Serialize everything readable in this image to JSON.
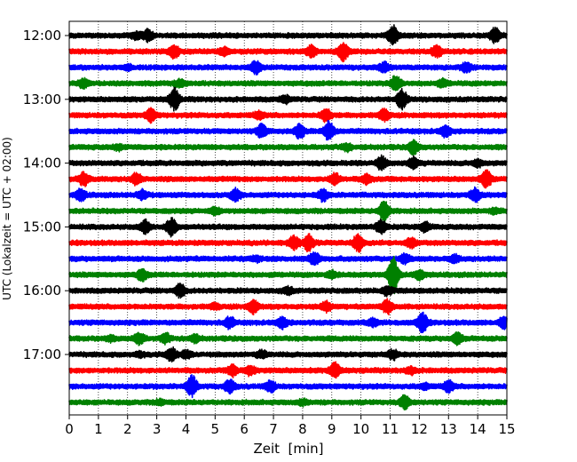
{
  "chart_data": {
    "type": "line",
    "title": "",
    "xlabel": "Zeit  [min]",
    "ylabel": "UTC (Lokalzeit = UTC + 02:00)",
    "xlim": [
      0,
      15
    ],
    "x_ticks": [
      "0",
      "1",
      "2",
      "3",
      "4",
      "5",
      "6",
      "7",
      "8",
      "9",
      "10",
      "11",
      "12",
      "13",
      "14",
      "15"
    ],
    "y_ticks": [
      {
        "label": "12:00",
        "row": 0
      },
      {
        "label": "13:00",
        "row": 4
      },
      {
        "label": "14:00",
        "row": 8
      },
      {
        "label": "15:00",
        "row": 12
      },
      {
        "label": "16:00",
        "row": 16
      },
      {
        "label": "17:00",
        "row": 20
      }
    ],
    "grid": "vertical dotted",
    "trace_interval_min": 15,
    "colors": [
      "#000000",
      "#ff0000",
      "#0000ff",
      "#008000"
    ],
    "traces": [
      {
        "start": "12:00",
        "color": "#000000",
        "events": [
          [
            2.7,
            0.5
          ],
          [
            11.1,
            0.9
          ],
          [
            14.6,
            0.7
          ],
          [
            2.3,
            0.3
          ]
        ]
      },
      {
        "start": "12:15",
        "color": "#ff0000",
        "events": [
          [
            3.6,
            0.6
          ],
          [
            8.3,
            0.5
          ],
          [
            9.4,
            0.9
          ],
          [
            5.3,
            0.3
          ],
          [
            12.6,
            0.5
          ]
        ]
      },
      {
        "start": "12:30",
        "color": "#0000ff",
        "events": [
          [
            6.4,
            0.6
          ],
          [
            10.8,
            0.4
          ],
          [
            13.6,
            0.4
          ],
          [
            2.0,
            0.2
          ]
        ]
      },
      {
        "start": "12:45",
        "color": "#008000",
        "events": [
          [
            0.5,
            0.4
          ],
          [
            11.2,
            0.7
          ],
          [
            12.8,
            0.3
          ],
          [
            3.8,
            0.3
          ]
        ]
      },
      {
        "start": "13:00",
        "color": "#000000",
        "events": [
          [
            3.6,
            1.0
          ],
          [
            11.4,
            0.9
          ],
          [
            7.4,
            0.3
          ]
        ]
      },
      {
        "start": "13:15",
        "color": "#ff0000",
        "events": [
          [
            2.8,
            0.6
          ],
          [
            8.8,
            0.6
          ],
          [
            10.8,
            0.5
          ],
          [
            6.5,
            0.3
          ]
        ]
      },
      {
        "start": "13:30",
        "color": "#0000ff",
        "events": [
          [
            6.6,
            0.6
          ],
          [
            7.9,
            0.6
          ],
          [
            8.9,
            0.9
          ],
          [
            12.9,
            0.5
          ]
        ]
      },
      {
        "start": "13:45",
        "color": "#008000",
        "events": [
          [
            11.8,
            0.6
          ],
          [
            1.7,
            0.2
          ],
          [
            9.5,
            0.3
          ]
        ]
      },
      {
        "start": "14:00",
        "color": "#000000",
        "events": [
          [
            10.7,
            0.6
          ],
          [
            11.8,
            0.5
          ],
          [
            14.0,
            0.3
          ]
        ]
      },
      {
        "start": "14:15",
        "color": "#ff0000",
        "events": [
          [
            0.5,
            0.6
          ],
          [
            2.3,
            0.5
          ],
          [
            9.1,
            0.5
          ],
          [
            10.2,
            0.4
          ],
          [
            14.3,
            0.8
          ]
        ]
      },
      {
        "start": "14:30",
        "color": "#0000ff",
        "events": [
          [
            0.4,
            0.5
          ],
          [
            2.5,
            0.4
          ],
          [
            5.7,
            0.5
          ],
          [
            8.7,
            0.5
          ],
          [
            13.9,
            0.6
          ]
        ]
      },
      {
        "start": "14:45",
        "color": "#008000",
        "events": [
          [
            10.8,
            1.0
          ],
          [
            5.0,
            0.3
          ],
          [
            14.6,
            0.2
          ]
        ]
      },
      {
        "start": "15:00",
        "color": "#000000",
        "events": [
          [
            2.6,
            0.6
          ],
          [
            3.5,
            0.8
          ],
          [
            10.7,
            0.6
          ],
          [
            12.2,
            0.4
          ]
        ]
      },
      {
        "start": "15:15",
        "color": "#ff0000",
        "events": [
          [
            7.7,
            0.6
          ],
          [
            8.2,
            0.7
          ],
          [
            9.9,
            0.8
          ],
          [
            11.7,
            0.4
          ]
        ]
      },
      {
        "start": "15:30",
        "color": "#0000ff",
        "events": [
          [
            8.4,
            0.6
          ],
          [
            11.5,
            0.4
          ],
          [
            6.4,
            0.2
          ],
          [
            13.2,
            0.3
          ]
        ]
      },
      {
        "start": "15:45",
        "color": "#008000",
        "events": [
          [
            2.5,
            0.5
          ],
          [
            11.1,
            1.8
          ],
          [
            12.0,
            0.4
          ],
          [
            9.0,
            0.3
          ]
        ]
      },
      {
        "start": "16:00",
        "color": "#000000",
        "events": [
          [
            3.8,
            0.6
          ],
          [
            7.5,
            0.3
          ],
          [
            10.9,
            0.4
          ]
        ]
      },
      {
        "start": "16:15",
        "color": "#ff0000",
        "events": [
          [
            6.3,
            0.6
          ],
          [
            8.8,
            0.4
          ],
          [
            10.9,
            0.6
          ],
          [
            5.0,
            0.2
          ]
        ]
      },
      {
        "start": "16:30",
        "color": "#0000ff",
        "events": [
          [
            5.5,
            0.5
          ],
          [
            7.3,
            0.5
          ],
          [
            12.1,
            1.0
          ],
          [
            14.9,
            0.5
          ],
          [
            10.4,
            0.3
          ]
        ]
      },
      {
        "start": "16:45",
        "color": "#008000",
        "events": [
          [
            2.4,
            0.5
          ],
          [
            3.3,
            0.4
          ],
          [
            4.3,
            0.3
          ],
          [
            13.3,
            0.5
          ],
          [
            1.4,
            0.2
          ]
        ]
      },
      {
        "start": "17:00",
        "color": "#000000",
        "events": [
          [
            3.5,
            0.6
          ],
          [
            4.0,
            0.3
          ],
          [
            6.6,
            0.3
          ],
          [
            11.1,
            0.4
          ],
          [
            2.4,
            0.2
          ]
        ]
      },
      {
        "start": "17:15",
        "color": "#ff0000",
        "events": [
          [
            5.6,
            0.5
          ],
          [
            9.1,
            0.7
          ],
          [
            6.2,
            0.4
          ],
          [
            11.7,
            0.3
          ]
        ]
      },
      {
        "start": "17:30",
        "color": "#0000ff",
        "events": [
          [
            4.2,
            1.0
          ],
          [
            5.5,
            0.6
          ],
          [
            6.9,
            0.5
          ],
          [
            13.0,
            0.5
          ],
          [
            12.2,
            0.2
          ]
        ]
      },
      {
        "start": "17:45",
        "color": "#008000",
        "events": [
          [
            11.5,
            0.6
          ],
          [
            3.1,
            0.2
          ],
          [
            8.0,
            0.2
          ]
        ]
      }
    ]
  }
}
